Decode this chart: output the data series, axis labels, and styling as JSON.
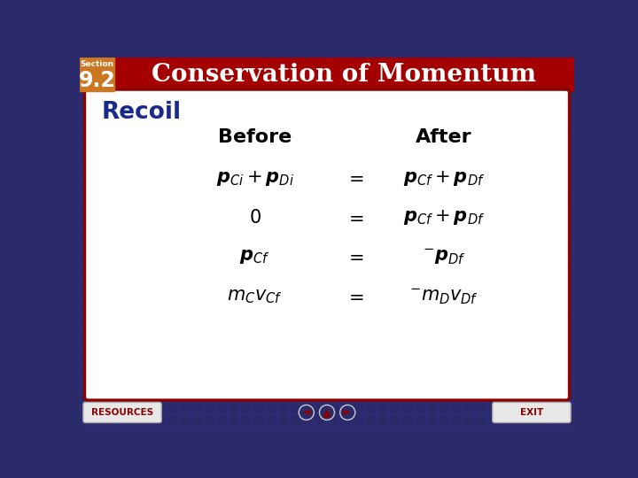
{
  "header_bg": "#A50000",
  "header_text": "Conservation of Momentum",
  "header_text_color": "#FFFFFF",
  "section_label": "Section",
  "section_number": "9.2",
  "section_bg": "#CC7722",
  "body_bg": "#FFFFFF",
  "outer_bg": "#2B2B6B",
  "card_border": "#8B0000",
  "recoil_title": "Recoil",
  "recoil_color": "#1A2A8B",
  "before_label": "Before",
  "after_label": "After",
  "rows_left": [
    "$\\boldsymbol{p}_{Ci} + \\boldsymbol{p}_{Di}$",
    "$0$",
    "$\\boldsymbol{p}_{Cf}$",
    "$m_C v_{Cf}$"
  ],
  "rows_right": [
    "$\\boldsymbol{p}_{Cf} + \\boldsymbol{p}_{Df}$",
    "$\\boldsymbol{p}_{Cf} + \\boldsymbol{p}_{Df}$",
    "$^{-}\\boldsymbol{p}_{Df}$",
    "$^{-}m_D v_{Df}$"
  ],
  "footer_bg": "#2B2B6B",
  "resources_text": "RESOURCES",
  "exit_text": "EXIT"
}
